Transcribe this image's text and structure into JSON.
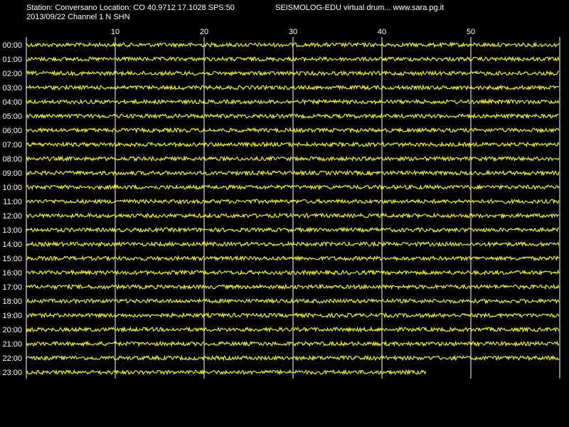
{
  "header": {
    "station_line": "Station: Conversano Location: CO 40.9712 17.1028 SPS:50",
    "program_line": "SEISMOLOG-EDU virtual drum... www.sara.pg.it",
    "date_line": "2013/09/22  Channel 1 N SHN"
  },
  "colors": {
    "background": "#000000",
    "trace": "#ffff00",
    "grid": "#ffffff",
    "text": "#ffffff"
  },
  "chart_data": {
    "type": "line",
    "title": "",
    "x_ticks": [
      "10",
      "20",
      "30",
      "40",
      "50"
    ],
    "x_tick_values": [
      10,
      20,
      30,
      40,
      50
    ],
    "xlim": [
      0,
      60
    ],
    "rows": [
      "00:00",
      "01:00",
      "02:00",
      "03:00",
      "04:00",
      "05:00",
      "06:00",
      "07:00",
      "08:00",
      "09:00",
      "10:00",
      "11:00",
      "12:00",
      "13:00",
      "14:00",
      "15:00",
      "16:00",
      "17:00",
      "18:00",
      "19:00",
      "20:00",
      "21:00",
      "22:00",
      "23:00"
    ],
    "last_row_end_minute": 45,
    "grid": true
  }
}
